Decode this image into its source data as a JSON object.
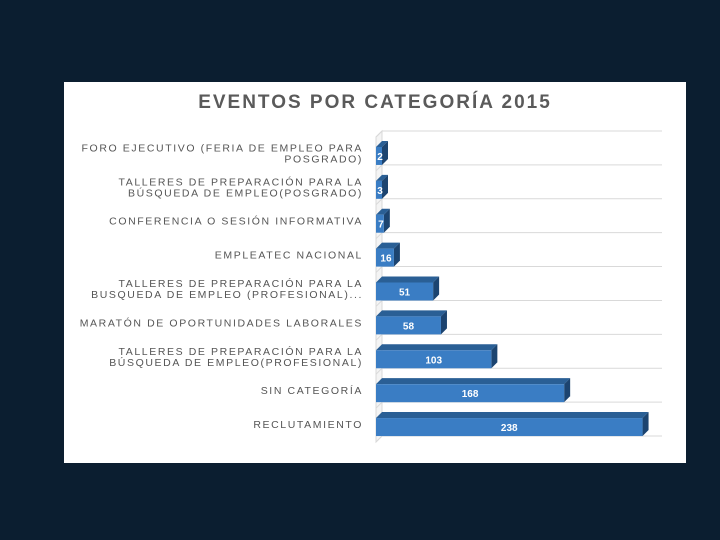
{
  "chart_data": {
    "type": "bar",
    "orientation": "horizontal",
    "title": "EVENTOS POR CATEGORÍA 2015",
    "categories": [
      [
        "FORO EJECUTIVO (FERIA DE EMPLEO PARA",
        "POSGRADO)"
      ],
      [
        "TALLERES DE PREPARACIÓN PARA LA",
        "BÚSQUEDA DE EMPLEO(POSGRADO)"
      ],
      [
        "CONFERENCIA O SESIÓN INFORMATIVA"
      ],
      [
        "EMPLEATEC NACIONAL"
      ],
      [
        "TALLERES DE PREPARACIÓN PARA LA",
        "BUSQUEDA DE EMPLEO (PROFESIONAL)..."
      ],
      [
        "MARATÓN DE OPORTUNIDADES LABORALES"
      ],
      [
        "TALLERES DE PREPARACIÓN PARA LA",
        "BÚSQUEDA DE EMPLEO(PROFESIONAL)"
      ],
      [
        "SIN CATEGORÍA"
      ],
      [
        "RECLUTAMIENTO"
      ]
    ],
    "values": [
      2,
      3,
      7,
      16,
      51,
      58,
      103,
      168,
      238
    ],
    "data_labels": [
      "2",
      "3",
      "7",
      "16",
      "51",
      "58",
      "103",
      "168",
      "238"
    ],
    "xlim": [
      0,
      250
    ],
    "grid": true,
    "style": "3d",
    "colors": {
      "bar_front": "#3a7dc4",
      "bar_top": "#2a5f95",
      "bar_side": "#1c4470",
      "grid": "#d9d9d9"
    }
  }
}
